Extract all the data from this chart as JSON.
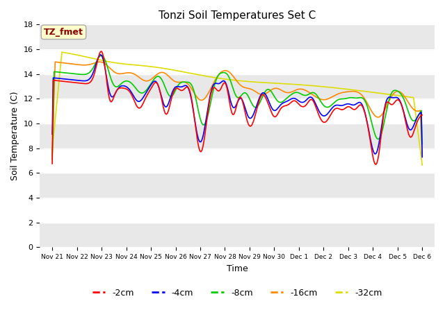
{
  "title": "Tonzi Soil Temperatures Set C",
  "xlabel": "Time",
  "ylabel": "Soil Temperature (C)",
  "ylim": [
    0,
    18
  ],
  "yticks": [
    0,
    2,
    4,
    6,
    8,
    10,
    12,
    14,
    16,
    18
  ],
  "annotation_text": "TZ_fmet",
  "annotation_color": "#8B0000",
  "annotation_bg": "#FFFFCC",
  "annotation_border": "#AAAAAA",
  "fig_bg": "#FFFFFF",
  "plot_bg": "#FFFFFF",
  "stripe_color_dark": "#E8E8E8",
  "line_colors": {
    "-2cm": "#FF0000",
    "-4cm": "#0000FF",
    "-8cm": "#00CC00",
    "-16cm": "#FF8800",
    "-32cm": "#DDDD00"
  },
  "line_width": 1.2,
  "xtick_labels": [
    "Nov 21",
    "Nov 22",
    "Nov 23",
    "Nov 24",
    "Nov 25",
    "Nov 26",
    "Nov 27",
    "Nov 28",
    "Nov 29",
    "Nov 30",
    "Dec 1",
    "Dec 2",
    "Dec 3",
    "Dec 4",
    "Dec 5",
    "Dec 6"
  ],
  "legend_labels": [
    "-2cm",
    "-4cm",
    "-8cm",
    "-16cm",
    "-32cm"
  ]
}
